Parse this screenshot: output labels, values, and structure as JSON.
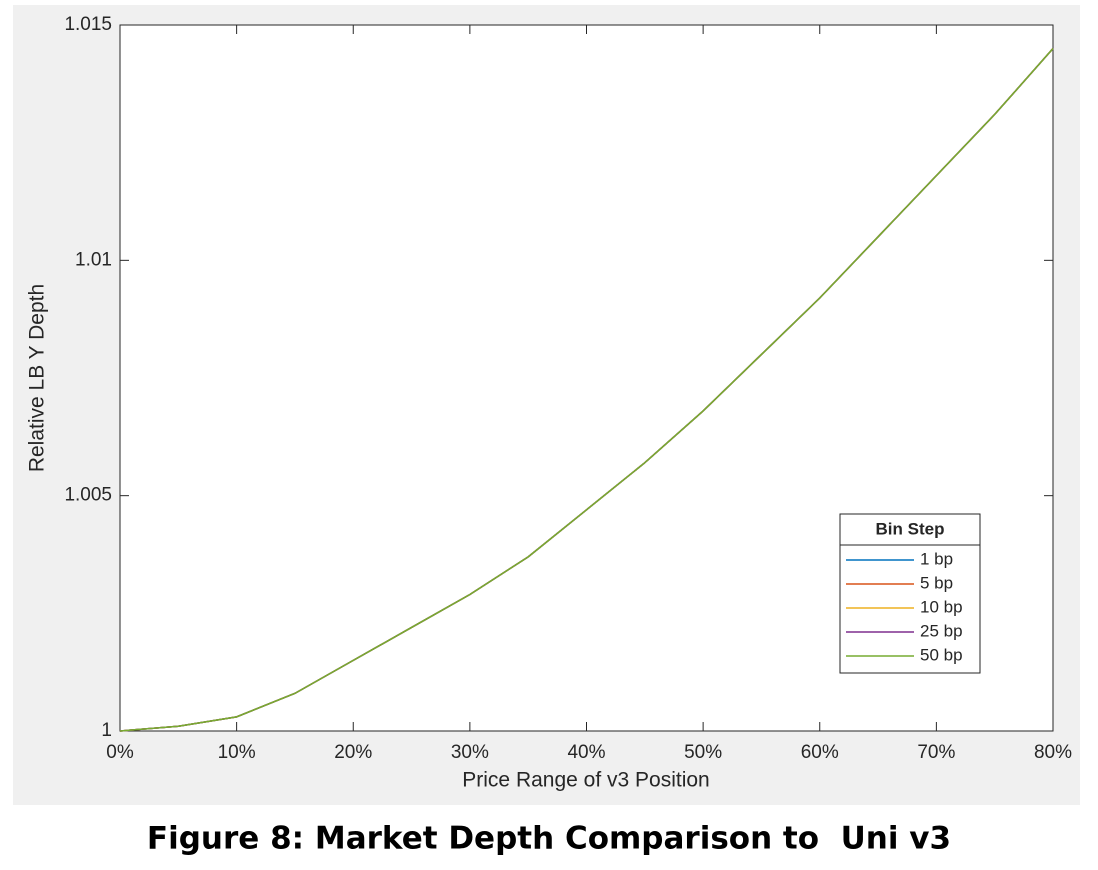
{
  "chart_data": {
    "type": "line",
    "caption": "Figure 8: Market Depth Comparison to  Uni v3",
    "x_label": "Price Range of v3 Position",
    "y_label": "Relative LB Y Depth",
    "legend_title": "Bin Step",
    "legend_position": "lower right",
    "x": [
      0,
      5,
      10,
      15,
      20,
      25,
      30,
      35,
      40,
      45,
      50,
      55,
      60,
      65,
      70,
      75,
      80
    ],
    "series": [
      {
        "name": "1 bp",
        "color": "#0072bd",
        "values": [
          1.0,
          1.0001,
          1.0003,
          1.0008,
          1.0015,
          1.0022,
          1.0029,
          1.0037,
          1.0047,
          1.0057,
          1.0068,
          1.008,
          1.0092,
          1.0105,
          1.0118,
          1.0131,
          1.0145
        ]
      },
      {
        "name": "5 bp",
        "color": "#d95319",
        "values": [
          1.0,
          1.0001,
          1.0003,
          1.0008,
          1.0015,
          1.0022,
          1.0029,
          1.0037,
          1.0047,
          1.0057,
          1.0068,
          1.008,
          1.0092,
          1.0105,
          1.0118,
          1.0131,
          1.0145
        ]
      },
      {
        "name": "10 bp",
        "color": "#edb120",
        "values": [
          1.0,
          1.0001,
          1.0003,
          1.0008,
          1.0015,
          1.0022,
          1.0029,
          1.0037,
          1.0047,
          1.0057,
          1.0068,
          1.008,
          1.0092,
          1.0105,
          1.0118,
          1.0131,
          1.0145
        ]
      },
      {
        "name": "25 bp",
        "color": "#7e2f8e",
        "values": [
          1.0,
          1.0001,
          1.0003,
          1.0008,
          1.0015,
          1.0022,
          1.0029,
          1.0037,
          1.0047,
          1.0057,
          1.0068,
          1.008,
          1.0092,
          1.0105,
          1.0118,
          1.0131,
          1.0145
        ]
      },
      {
        "name": "50 bp",
        "color": "#77ac30",
        "values": [
          1.0,
          1.0001,
          1.0003,
          1.0008,
          1.0015,
          1.0022,
          1.0029,
          1.0037,
          1.0047,
          1.0057,
          1.0068,
          1.008,
          1.0092,
          1.0105,
          1.0118,
          1.0131,
          1.0145
        ]
      }
    ],
    "xlim": [
      0,
      80
    ],
    "xticks": [
      {
        "value": 0,
        "label": "0%"
      },
      {
        "value": 10,
        "label": "10%"
      },
      {
        "value": 20,
        "label": "20%"
      },
      {
        "value": 30,
        "label": "30%"
      },
      {
        "value": 40,
        "label": "40%"
      },
      {
        "value": 50,
        "label": "50%"
      },
      {
        "value": 60,
        "label": "60%"
      },
      {
        "value": 70,
        "label": "70%"
      },
      {
        "value": 80,
        "label": "80%"
      }
    ],
    "ylim": [
      1,
      1.015
    ],
    "yticks": [
      1,
      1.005,
      1.01,
      1.015
    ],
    "grid": false
  }
}
